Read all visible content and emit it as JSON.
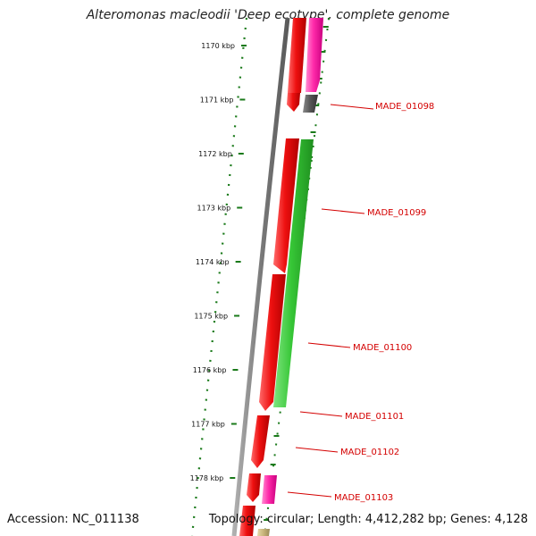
{
  "header": {
    "title": "Alteromonas macleodii 'Deep ecotype', complete genome"
  },
  "footer": {
    "accession": "Accession: NC_011138",
    "summary": "Topology: circular; Length: 4,412,282 bp; Genes: 4,128"
  },
  "colors": {
    "tick": "#1a7a1a",
    "label": "#d40000",
    "backbone": "#808080",
    "gene_forward": "#ee1c1c",
    "gene_cds": "#3cc83c",
    "gene_pink": "#ff2aaa",
    "gene_gray": "#555555",
    "gene_tan": "#c8b47a"
  },
  "scale": {
    "unit": "kbp",
    "ticks": [
      {
        "kbp": 1170,
        "label": "1170 kbp"
      },
      {
        "kbp": 1171,
        "label": "1171 kbp"
      },
      {
        "kbp": 1172,
        "label": "1172 kbp"
      },
      {
        "kbp": 1173,
        "label": "1173 kbp"
      },
      {
        "kbp": 1174,
        "label": "1174 kbp"
      },
      {
        "kbp": 1175,
        "label": "1175 kbp"
      },
      {
        "kbp": 1176,
        "label": "1176 kbp"
      },
      {
        "kbp": 1177,
        "label": "1177 kbp"
      },
      {
        "kbp": 1178,
        "label": "1178 kbp"
      }
    ]
  },
  "genes": [
    {
      "label": "MADE_01098"
    },
    {
      "label": "MADE_01099"
    },
    {
      "label": "MADE_01100"
    },
    {
      "label": "MADE_01101"
    },
    {
      "label": "MADE_01102"
    },
    {
      "label": "MADE_01103"
    }
  ]
}
